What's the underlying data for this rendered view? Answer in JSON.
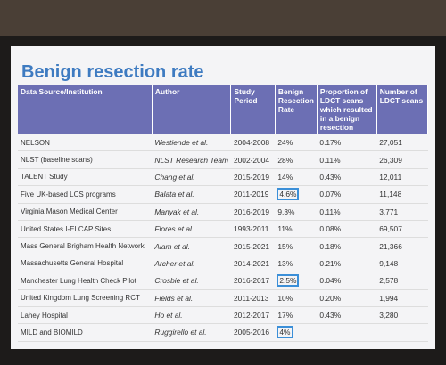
{
  "slide": {
    "title": "Benign resection rate",
    "table": {
      "headers": [
        "Data Source/Institution",
        "Author",
        "Study Period",
        "Benign Resection Rate",
        "Proportion of LDCT scans which resulted in a benign resection",
        "Number of LDCT scans"
      ],
      "rows": [
        [
          "NELSON",
          "Westiende et al.",
          "2004-2008",
          "24%",
          "0.17%",
          "27,051"
        ],
        [
          "NLST (baseline scans)",
          "NLST Research Team",
          "2002-2004",
          "28%",
          "0.11%",
          "26,309"
        ],
        [
          "TALENT Study",
          "Chang et al.",
          "2015-2019",
          "14%",
          "0.43%",
          "12,011"
        ],
        [
          "Five UK-based LCS programs",
          "Balata et al.",
          "2011-2019",
          "4.6%",
          "0.07%",
          "11,148"
        ],
        [
          "Virginia Mason Medical Center",
          "Manyak et al.",
          "2016-2019",
          "9.3%",
          "0.11%",
          "3,771"
        ],
        [
          "United States I-ELCAP Sites",
          "Flores et al.",
          "1993-2011",
          "11%",
          "0.08%",
          "69,507"
        ],
        [
          "Mass General Brigham Health Network",
          "Alam et al.",
          "2015-2021",
          "15%",
          "0.18%",
          "21,366"
        ],
        [
          "Massachusetts General Hospital",
          "Archer et al.",
          "2014-2021",
          "13%",
          "0.21%",
          "9,148"
        ],
        [
          "Manchester Lung Health Check Pilot",
          "Crosbie et al.",
          "2016-2017",
          "2.5%",
          "0.04%",
          "2,578"
        ],
        [
          "United Kingdom Lung Screening RCT",
          "Fields et al.",
          "2011-2013",
          "10%",
          "0.20%",
          "1,994"
        ],
        [
          "Lahey Hospital",
          "Ho et al.",
          "2012-2017",
          "17%",
          "0.43%",
          "3,280"
        ],
        [
          "MILD and BIOMILD",
          "Ruggirello et al.",
          "2005-2016",
          "4%",
          null,
          null
        ]
      ]
    }
  }
}
